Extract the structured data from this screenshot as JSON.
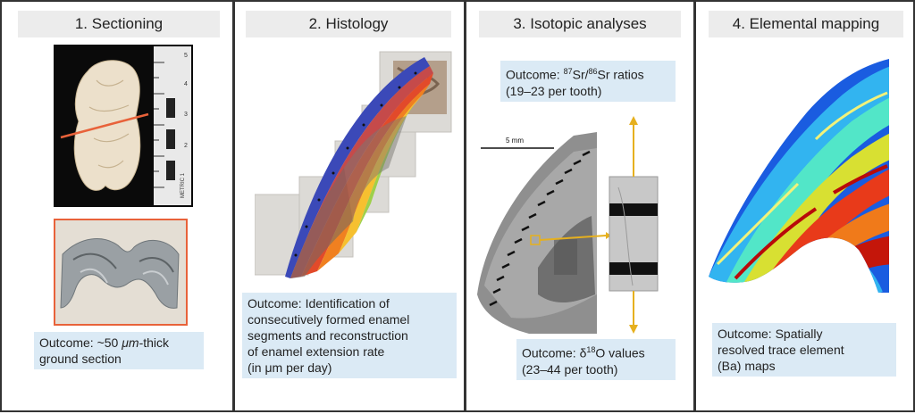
{
  "panels": [
    {
      "title": "1. Sectioning",
      "outcome_prefix": "Outcome: ~50 ",
      "outcome_unit": "μm",
      "outcome_suffix": "-thick ground section",
      "ruler_labels": [
        "5",
        "4",
        "3",
        "2",
        "METRIC 1"
      ]
    },
    {
      "title": "2. Histology",
      "outcome_lines": [
        "Outcome: Identification of",
        "consecutively formed enamel",
        "segments and reconstruction",
        "of enamel extension rate",
        "(in μm per day)"
      ]
    },
    {
      "title": "3. Isotopic analyses",
      "outcome_top_prefix": "Outcome: ",
      "outcome_top_sup1": "87",
      "outcome_top_mid": "Sr/",
      "outcome_top_sup2": "86",
      "outcome_top_suffix": "Sr ratios",
      "outcome_top_line2": "(19–23 per tooth)",
      "scale_label": "5 mm",
      "outcome_bottom_prefix": "Outcome: δ",
      "outcome_bottom_sup": "18",
      "outcome_bottom_suffix": "O values",
      "outcome_bottom_line2": "(23–44 per tooth)"
    },
    {
      "title": "4. Elemental mapping",
      "outcome_lines": [
        "Outcome: Spatially",
        "resolved trace element",
        "(Ba) maps"
      ]
    }
  ],
  "colors": {
    "outcome_bg": "#dbeaf5",
    "title_bg": "#ececec",
    "section_line": "#e8623a",
    "arrow": "#e6b01e"
  }
}
